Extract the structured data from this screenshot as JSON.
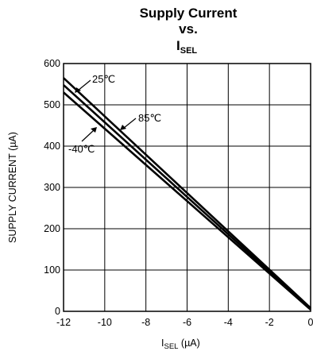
{
  "chart_data": {
    "type": "line",
    "title": {
      "line1": "Supply Current",
      "line2": "vs.",
      "line3_main": "I",
      "line3_sub": "SEL"
    },
    "xlabel": {
      "main": "I",
      "sub": "SEL",
      "unit": " (µA)"
    },
    "ylabel": "SUPPLY CURRENT (µA)",
    "xlim": [
      -12,
      0
    ],
    "ylim": [
      0,
      600
    ],
    "x_ticks": [
      "-12",
      "-10",
      "-8",
      "-6",
      "-4",
      "-2",
      "0"
    ],
    "y_ticks": [
      "0",
      "100",
      "200",
      "300",
      "400",
      "500",
      "600"
    ],
    "grid": true,
    "series": [
      {
        "name": "25℃",
        "x": [
          -12,
          0
        ],
        "y": [
          565,
          8
        ]
      },
      {
        "name": "85℃",
        "x": [
          -12,
          0
        ],
        "y": [
          548,
          6
        ]
      },
      {
        "name": "-40℃",
        "x": [
          -12,
          0
        ],
        "y": [
          530,
          4
        ]
      }
    ],
    "annotations": [
      "25℃",
      "85℃",
      "-40℃"
    ]
  }
}
